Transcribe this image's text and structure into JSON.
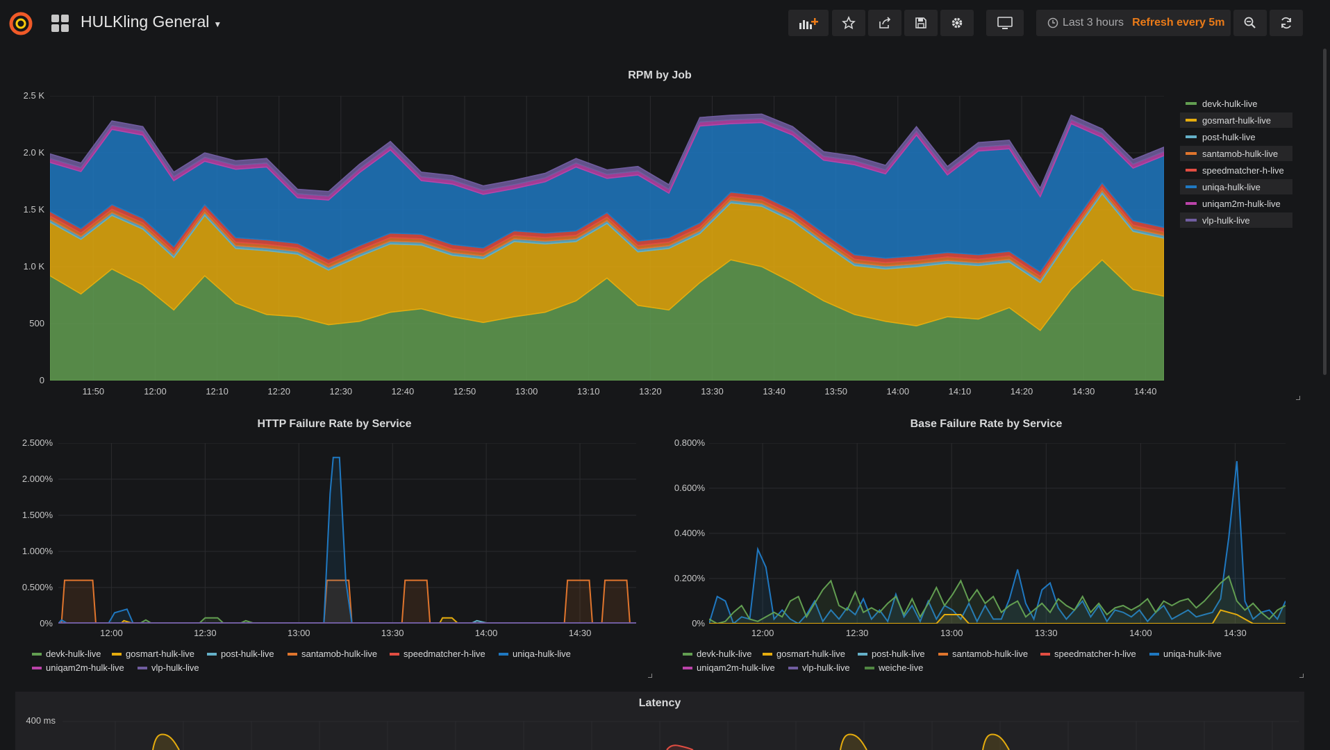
{
  "header": {
    "dashboard_title": "HULKling General",
    "time_range": "Last 3 hours",
    "refresh": "Refresh every 5m",
    "icons": [
      "grafana-logo-icon",
      "apps-grid-icon",
      "add-panel-icon",
      "star-icon",
      "share-icon",
      "save-icon",
      "settings-icon",
      "tv-mode-icon",
      "clock-icon",
      "zoom-out-icon",
      "refresh-icon"
    ]
  },
  "colors": {
    "devk": "#629e51",
    "gosmart": "#e5ac0e",
    "post": "#64b0c8",
    "santamob": "#e0752d",
    "speedmatcher": "#e24d42",
    "uniqa": "#1f78c1",
    "uniqam2m": "#ba43a9",
    "vlp": "#705da0",
    "weiche": "#508642"
  },
  "rpm_panel": {
    "title": "RPM by Job",
    "y_ticks": [
      "2.5 K",
      "2.0 K",
      "1.5 K",
      "1.0 K",
      "500",
      "0"
    ],
    "x_ticks": [
      "11:50",
      "12:00",
      "12:10",
      "12:20",
      "12:30",
      "12:40",
      "12:50",
      "13:00",
      "13:10",
      "13:20",
      "13:30",
      "13:40",
      "13:50",
      "14:00",
      "14:10",
      "14:20",
      "14:30",
      "14:40"
    ],
    "legend": [
      "devk-hulk-live",
      "gosmart-hulk-live",
      "post-hulk-live",
      "santamob-hulk-live",
      "speedmatcher-h-live",
      "uniqa-hulk-live",
      "uniqam2m-hulk-live",
      "vlp-hulk-live"
    ]
  },
  "http_panel": {
    "title": "HTTP Failure Rate by Service",
    "y_ticks": [
      "2.500%",
      "2.000%",
      "1.500%",
      "1.000%",
      "0.500%",
      "0%"
    ],
    "x_ticks": [
      "12:00",
      "12:30",
      "13:00",
      "13:30",
      "14:00",
      "14:30"
    ],
    "legend": [
      "devk-hulk-live",
      "gosmart-hulk-live",
      "post-hulk-live",
      "santamob-hulk-live",
      "speedmatcher-h-live",
      "uniqa-hulk-live",
      "uniqam2m-hulk-live",
      "vlp-hulk-live"
    ]
  },
  "base_panel": {
    "title": "Base Failure Rate by Service",
    "y_ticks": [
      "0.800%",
      "0.600%",
      "0.400%",
      "0.200%",
      "0%"
    ],
    "x_ticks": [
      "12:00",
      "12:30",
      "13:00",
      "13:30",
      "14:00",
      "14:30"
    ],
    "legend": [
      "devk-hulk-live",
      "gosmart-hulk-live",
      "post-hulk-live",
      "santamob-hulk-live",
      "speedmatcher-h-live",
      "uniqa-hulk-live",
      "uniqam2m-hulk-live",
      "vlp-hulk-live",
      "weiche-live"
    ]
  },
  "latency_panel": {
    "title": "Latency",
    "y_tick_top": "400 ms"
  },
  "chart_data": [
    {
      "type": "area",
      "title": "RPM by Job",
      "stacked": true,
      "x": [
        "11:43",
        "11:48",
        "11:53",
        "11:58",
        "12:03",
        "12:08",
        "12:13",
        "12:18",
        "12:23",
        "12:28",
        "12:33",
        "12:38",
        "12:43",
        "12:48",
        "12:53",
        "12:58",
        "13:03",
        "13:08",
        "13:13",
        "13:18",
        "13:23",
        "13:28",
        "13:33",
        "13:38",
        "13:43",
        "13:48",
        "13:53",
        "13:58",
        "14:03",
        "14:08",
        "14:13",
        "14:18",
        "14:23",
        "14:28",
        "14:33",
        "14:38",
        "14:43"
      ],
      "ylim": [
        0,
        2500
      ],
      "series": [
        {
          "name": "devk-hulk-live",
          "values": [
            920,
            760,
            980,
            840,
            620,
            920,
            680,
            580,
            560,
            490,
            520,
            600,
            630,
            560,
            510,
            560,
            600,
            700,
            900,
            660,
            620,
            860,
            1060,
            1000,
            860,
            700,
            580,
            520,
            480,
            560,
            540,
            640,
            440,
            800,
            1060,
            800,
            740
          ]
        },
        {
          "name": "gosmart-hulk-live",
          "values": [
            470,
            480,
            470,
            490,
            460,
            530,
            480,
            560,
            550,
            480,
            570,
            600,
            560,
            540,
            560,
            660,
            600,
            520,
            480,
            470,
            540,
            430,
            500,
            530,
            540,
            500,
            430,
            460,
            520,
            470,
            470,
            400,
            420,
            460,
            580,
            510,
            510
          ]
        },
        {
          "name": "post-hulk-live",
          "values": [
            25,
            25,
            25,
            25,
            25,
            25,
            25,
            25,
            25,
            25,
            25,
            25,
            25,
            25,
            25,
            25,
            25,
            25,
            25,
            25,
            25,
            25,
            25,
            25,
            25,
            25,
            25,
            25,
            25,
            25,
            25,
            25,
            25,
            25,
            25,
            25,
            25
          ]
        },
        {
          "name": "santamob-hulk-live",
          "values": [
            30,
            30,
            30,
            30,
            30,
            30,
            30,
            30,
            30,
            30,
            30,
            30,
            30,
            30,
            30,
            30,
            30,
            30,
            30,
            30,
            30,
            30,
            30,
            30,
            30,
            30,
            30,
            30,
            30,
            30,
            30,
            30,
            30,
            30,
            30,
            30,
            30
          ]
        },
        {
          "name": "speedmatcher-h-live",
          "values": [
            40,
            40,
            40,
            40,
            40,
            40,
            40,
            40,
            40,
            40,
            40,
            40,
            40,
            40,
            40,
            40,
            40,
            40,
            40,
            40,
            40,
            40,
            40,
            40,
            40,
            40,
            40,
            40,
            40,
            40,
            40,
            40,
            40,
            40,
            40,
            40,
            40
          ]
        },
        {
          "name": "uniqa-hulk-live",
          "values": [
            430,
            500,
            660,
            730,
            580,
            380,
            600,
            640,
            400,
            520,
            640,
            730,
            470,
            530,
            470,
            370,
            450,
            560,
            300,
            580,
            390,
            850,
            600,
            640,
            660,
            640,
            790,
            740,
            1060,
            680,
            910,
            900,
            660,
            900,
            400,
            460,
            630
          ]
        },
        {
          "name": "uniqam2m-hulk-live",
          "values": [
            35,
            35,
            35,
            35,
            35,
            35,
            35,
            35,
            35,
            35,
            35,
            35,
            35,
            35,
            35,
            35,
            35,
            35,
            35,
            35,
            35,
            35,
            35,
            35,
            35,
            35,
            35,
            35,
            35,
            35,
            35,
            35,
            35,
            35,
            35,
            35,
            35
          ]
        },
        {
          "name": "vlp-hulk-live",
          "values": [
            40,
            40,
            40,
            40,
            40,
            40,
            40,
            40,
            40,
            40,
            40,
            40,
            40,
            40,
            40,
            40,
            40,
            40,
            40,
            40,
            40,
            40,
            40,
            40,
            40,
            40,
            40,
            40,
            40,
            40,
            40,
            40,
            40,
            40,
            40,
            40,
            40
          ]
        }
      ]
    },
    {
      "type": "line",
      "title": "HTTP Failure Rate by Service",
      "ylim": [
        0,
        2.5
      ],
      "x_range": [
        "11:43",
        "14:48"
      ],
      "series": [
        {
          "name": "santamob-hulk-live",
          "points": [
            [
              "11:44",
              0
            ],
            [
              "11:45",
              0.6
            ],
            [
              "11:54",
              0.6
            ],
            [
              "11:55",
              0
            ],
            [
              "13:08",
              0
            ],
            [
              "13:09",
              0.6
            ],
            [
              "13:16",
              0.6
            ],
            [
              "13:17",
              0
            ],
            [
              "13:33",
              0
            ],
            [
              "13:34",
              0.6
            ],
            [
              "13:41",
              0.6
            ],
            [
              "13:42",
              0
            ],
            [
              "14:25",
              0
            ],
            [
              "14:26",
              0.6
            ],
            [
              "14:33",
              0.6
            ],
            [
              "14:34",
              0
            ],
            [
              "14:37",
              0
            ],
            [
              "14:38",
              0.6
            ],
            [
              "14:45",
              0.6
            ],
            [
              "14:46",
              0
            ]
          ]
        },
        {
          "name": "uniqa-hulk-live",
          "points": [
            [
              "11:43",
              0
            ],
            [
              "11:44",
              0.05
            ],
            [
              "11:46",
              0
            ],
            [
              "11:59",
              0
            ],
            [
              "12:01",
              0.15
            ],
            [
              "12:05",
              0.2
            ],
            [
              "12:07",
              0
            ],
            [
              "13:08",
              0
            ],
            [
              "13:10",
              1.8
            ],
            [
              "13:11",
              2.3
            ],
            [
              "13:13",
              2.3
            ],
            [
              "13:15",
              0.6
            ],
            [
              "13:17",
              0
            ],
            [
              "14:48",
              0
            ]
          ]
        },
        {
          "name": "devk-hulk-live",
          "points": [
            [
              "11:43",
              0
            ],
            [
              "12:09",
              0
            ],
            [
              "12:11",
              0.05
            ],
            [
              "12:13",
              0
            ],
            [
              "12:28",
              0
            ],
            [
              "12:30",
              0.08
            ],
            [
              "12:34",
              0.08
            ],
            [
              "12:36",
              0
            ],
            [
              "12:41",
              0
            ],
            [
              "12:43",
              0.04
            ],
            [
              "12:46",
              0
            ],
            [
              "14:48",
              0
            ]
          ]
        },
        {
          "name": "gosmart-hulk-live",
          "points": [
            [
              "11:43",
              0
            ],
            [
              "12:03",
              0
            ],
            [
              "12:04",
              0.04
            ],
            [
              "12:07",
              0
            ],
            [
              "13:45",
              0
            ],
            [
              "13:46",
              0.08
            ],
            [
              "13:49",
              0.08
            ],
            [
              "13:51",
              0
            ],
            [
              "14:48",
              0
            ]
          ]
        },
        {
          "name": "post-hulk-live",
          "points": [
            [
              "11:43",
              0
            ],
            [
              "13:55",
              0
            ],
            [
              "13:57",
              0.04
            ],
            [
              "14:01",
              0
            ],
            [
              "14:48",
              0
            ]
          ]
        },
        {
          "name": "vlp-hulk-live",
          "points": [
            [
              "11:43",
              0.01
            ],
            [
              "14:48",
              0.01
            ]
          ]
        }
      ]
    },
    {
      "type": "line",
      "title": "Base Failure Rate by Service",
      "ylim": [
        0,
        0.8
      ],
      "x_range": [
        "11:43",
        "14:46"
      ],
      "series": [
        {
          "name": "uniqa-hulk-live",
          "values": [
            0,
            0.12,
            0.1,
            0,
            0.03,
            0.02,
            0.33,
            0.25,
            0.02,
            0.06,
            0.02,
            0,
            0.04,
            0.1,
            0.01,
            0.06,
            0.02,
            0.07,
            0.04,
            0.11,
            0.02,
            0.06,
            0.01,
            0.13,
            0.03,
            0.08,
            0.01,
            0.1,
            0.02,
            0.08,
            0.06,
            0.02,
            0.09,
            0.01,
            0.08,
            0.02,
            0.02,
            0.11,
            0.24,
            0.09,
            0.02,
            0.15,
            0.18,
            0.07,
            0.02,
            0.06,
            0.1,
            0.03,
            0.08,
            0.01,
            0.06,
            0.05,
            0.03,
            0.06,
            0.01,
            0.05,
            0.08,
            0.02,
            0.04,
            0.06,
            0.03,
            0.04,
            0.05,
            0.11,
            0.38,
            0.72,
            0.1,
            0.02,
            0.05,
            0.06,
            0.02,
            0.1
          ]
        },
        {
          "name": "devk-hulk-live",
          "values": [
            0.02,
            0,
            0.01,
            0.05,
            0.08,
            0.02,
            0.01,
            0.03,
            0.05,
            0.03,
            0.1,
            0.12,
            0.03,
            0.09,
            0.15,
            0.19,
            0.08,
            0.06,
            0.14,
            0.05,
            0.07,
            0.05,
            0.09,
            0.12,
            0.04,
            0.11,
            0.03,
            0.09,
            0.16,
            0.08,
            0.13,
            0.19,
            0.1,
            0.15,
            0.09,
            0.12,
            0.05,
            0.08,
            0.1,
            0.03,
            0.06,
            0.09,
            0.05,
            0.11,
            0.08,
            0.06,
            0.12,
            0.05,
            0.09,
            0.04,
            0.07,
            0.08,
            0.06,
            0.08,
            0.11,
            0.05,
            0.1,
            0.08,
            0.1,
            0.11,
            0.07,
            0.1,
            0.14,
            0.18,
            0.21,
            0.1,
            0.06,
            0.09,
            0.05,
            0.02,
            0.06,
            0.08
          ]
        },
        {
          "name": "gosmart-hulk-live",
          "values": [
            0,
            0,
            0,
            0,
            0,
            0,
            0,
            0,
            0,
            0,
            0,
            0,
            0,
            0,
            0,
            0,
            0,
            0,
            0,
            0,
            0,
            0,
            0,
            0,
            0,
            0,
            0,
            0,
            0,
            0.04,
            0.04,
            0.04,
            0,
            0,
            0,
            0,
            0,
            0,
            0,
            0,
            0,
            0,
            0,
            0,
            0,
            0,
            0,
            0,
            0,
            0,
            0,
            0,
            0,
            0,
            0,
            0,
            0,
            0,
            0,
            0,
            0,
            0,
            0,
            0.06,
            0.05,
            0.04,
            0.02,
            0,
            0,
            0,
            0,
            0
          ]
        }
      ]
    },
    {
      "type": "line",
      "title": "Latency",
      "y_ticks": [
        "400 ms"
      ]
    }
  ]
}
